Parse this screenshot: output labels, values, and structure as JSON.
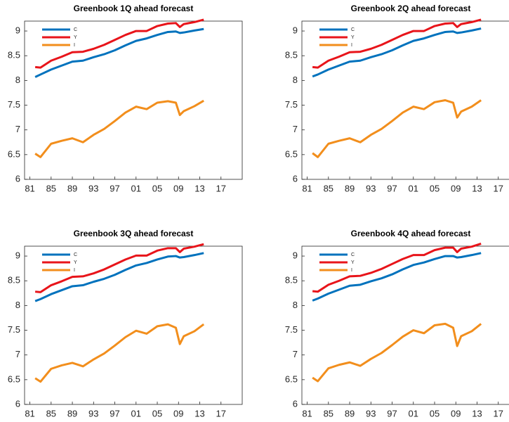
{
  "chart_data": [
    {
      "type": "line",
      "title": "Greenbook 1Q ahead forecast",
      "x": [
        1982,
        1983,
        1985,
        1987,
        1989,
        1991,
        1993,
        1995,
        1997,
        1999,
        2001,
        2003,
        2005,
        2007,
        2008.5,
        2009.25,
        2010,
        2012,
        2013.75
      ],
      "series": [
        {
          "name": "C",
          "color": "#0072bd",
          "values": [
            8.07,
            8.12,
            8.22,
            8.3,
            8.38,
            8.4,
            8.47,
            8.53,
            8.61,
            8.71,
            8.8,
            8.85,
            8.92,
            8.98,
            8.99,
            8.96,
            8.97,
            9.01,
            9.04
          ]
        },
        {
          "name": "Y",
          "color": "#e8141a",
          "values": [
            8.27,
            8.26,
            8.4,
            8.48,
            8.57,
            8.58,
            8.64,
            8.72,
            8.82,
            8.92,
            9.0,
            9.0,
            9.1,
            9.15,
            9.16,
            9.08,
            9.14,
            9.18,
            9.23
          ]
        },
        {
          "name": "I",
          "color": "#f28e1c",
          "values": [
            6.52,
            6.45,
            6.72,
            6.78,
            6.83,
            6.75,
            6.9,
            7.02,
            7.18,
            7.35,
            7.47,
            7.42,
            7.55,
            7.58,
            7.55,
            7.3,
            7.38,
            7.48,
            7.59
          ]
        }
      ],
      "xlim": [
        1980,
        2021
      ],
      "ylim": [
        6,
        9.2
      ],
      "xticks": [
        {
          "value": 1981,
          "label": "81"
        },
        {
          "value": 1985,
          "label": "85"
        },
        {
          "value": 1989,
          "label": "89"
        },
        {
          "value": 1993,
          "label": "93"
        },
        {
          "value": 1997,
          "label": "97"
        },
        {
          "value": 2001,
          "label": "01"
        },
        {
          "value": 2005,
          "label": "05"
        },
        {
          "value": 2009,
          "label": "09"
        },
        {
          "value": 2013,
          "label": "13"
        },
        {
          "value": 2017,
          "label": "17"
        }
      ],
      "yticks": [
        6,
        6.5,
        7,
        7.5,
        8,
        8.5,
        9
      ],
      "legend": "upper left",
      "grid": false
    },
    {
      "type": "line",
      "title": "Greenbook 2Q ahead forecast",
      "x": [
        1982,
        1983,
        1985,
        1987,
        1989,
        1991,
        1993,
        1995,
        1997,
        1999,
        2001,
        2003,
        2005,
        2007,
        2008.5,
        2009.25,
        2010,
        2012,
        2013.75
      ],
      "series": [
        {
          "name": "C",
          "color": "#0072bd",
          "values": [
            8.08,
            8.12,
            8.22,
            8.3,
            8.38,
            8.4,
            8.47,
            8.53,
            8.61,
            8.71,
            8.8,
            8.85,
            8.92,
            8.98,
            8.99,
            8.96,
            8.97,
            9.01,
            9.05
          ]
        },
        {
          "name": "Y",
          "color": "#e8141a",
          "values": [
            8.27,
            8.26,
            8.4,
            8.48,
            8.57,
            8.58,
            8.64,
            8.72,
            8.82,
            8.92,
            9.0,
            9.0,
            9.1,
            9.15,
            9.16,
            9.08,
            9.14,
            9.18,
            9.23
          ]
        },
        {
          "name": "I",
          "color": "#f28e1c",
          "values": [
            6.53,
            6.45,
            6.72,
            6.78,
            6.83,
            6.75,
            6.9,
            7.02,
            7.18,
            7.35,
            7.47,
            7.42,
            7.56,
            7.6,
            7.55,
            7.25,
            7.37,
            7.47,
            7.6
          ]
        }
      ],
      "xlim": [
        1980,
        2021
      ],
      "ylim": [
        6,
        9.2
      ],
      "xticks": [
        {
          "value": 1981,
          "label": "81"
        },
        {
          "value": 1985,
          "label": "85"
        },
        {
          "value": 1989,
          "label": "89"
        },
        {
          "value": 1993,
          "label": "93"
        },
        {
          "value": 1997,
          "label": "97"
        },
        {
          "value": 2001,
          "label": "01"
        },
        {
          "value": 2005,
          "label": "05"
        },
        {
          "value": 2009,
          "label": "09"
        },
        {
          "value": 2013,
          "label": "13"
        },
        {
          "value": 2017,
          "label": "17"
        }
      ],
      "yticks": [
        6,
        6.5,
        7,
        7.5,
        8,
        8.5,
        9
      ],
      "legend": "upper left",
      "grid": false
    },
    {
      "type": "line",
      "title": "Greenbook 3Q ahead forecast",
      "x": [
        1982,
        1983,
        1985,
        1987,
        1989,
        1991,
        1993,
        1995,
        1997,
        1999,
        2001,
        2003,
        2005,
        2007,
        2008.5,
        2009.25,
        2010,
        2012,
        2013.75
      ],
      "series": [
        {
          "name": "C",
          "color": "#0072bd",
          "values": [
            8.09,
            8.13,
            8.23,
            8.31,
            8.39,
            8.41,
            8.48,
            8.54,
            8.62,
            8.72,
            8.81,
            8.86,
            8.93,
            8.99,
            9.0,
            8.97,
            8.98,
            9.02,
            9.06
          ]
        },
        {
          "name": "Y",
          "color": "#e8141a",
          "values": [
            8.28,
            8.27,
            8.41,
            8.49,
            8.58,
            8.59,
            8.65,
            8.73,
            8.83,
            8.93,
            9.01,
            9.01,
            9.11,
            9.16,
            9.16,
            9.08,
            9.15,
            9.19,
            9.24
          ]
        },
        {
          "name": "I",
          "color": "#f28e1c",
          "values": [
            6.53,
            6.46,
            6.72,
            6.79,
            6.84,
            6.77,
            6.91,
            7.03,
            7.19,
            7.36,
            7.49,
            7.43,
            7.58,
            7.62,
            7.55,
            7.22,
            7.38,
            7.48,
            7.62
          ]
        }
      ],
      "xlim": [
        1980,
        2021
      ],
      "ylim": [
        6,
        9.2
      ],
      "xticks": [
        {
          "value": 1981,
          "label": "81"
        },
        {
          "value": 1985,
          "label": "85"
        },
        {
          "value": 1989,
          "label": "89"
        },
        {
          "value": 1993,
          "label": "93"
        },
        {
          "value": 1997,
          "label": "97"
        },
        {
          "value": 2001,
          "label": "01"
        },
        {
          "value": 2005,
          "label": "05"
        },
        {
          "value": 2009,
          "label": "09"
        },
        {
          "value": 2013,
          "label": "13"
        },
        {
          "value": 2017,
          "label": "17"
        }
      ],
      "yticks": [
        6,
        6.5,
        7,
        7.5,
        8,
        8.5,
        9
      ],
      "legend": "upper left",
      "grid": false
    },
    {
      "type": "line",
      "title": "Greenbook 4Q ahead forecast",
      "x": [
        1982,
        1983,
        1985,
        1987,
        1989,
        1991,
        1993,
        1995,
        1997,
        1999,
        2001,
        2003,
        2005,
        2007,
        2008.5,
        2009.25,
        2010,
        2012,
        2013.75
      ],
      "series": [
        {
          "name": "C",
          "color": "#0072bd",
          "values": [
            8.1,
            8.14,
            8.24,
            8.32,
            8.4,
            8.42,
            8.49,
            8.55,
            8.63,
            8.73,
            8.82,
            8.87,
            8.94,
            9.0,
            9.0,
            8.97,
            8.98,
            9.02,
            9.06
          ]
        },
        {
          "name": "Y",
          "color": "#e8141a",
          "values": [
            8.29,
            8.28,
            8.42,
            8.5,
            8.59,
            8.6,
            8.66,
            8.74,
            8.84,
            8.94,
            9.02,
            9.02,
            9.12,
            9.17,
            9.17,
            9.08,
            9.15,
            9.19,
            9.25
          ]
        },
        {
          "name": "I",
          "color": "#f28e1c",
          "values": [
            6.54,
            6.47,
            6.73,
            6.8,
            6.85,
            6.78,
            6.92,
            7.04,
            7.2,
            7.37,
            7.5,
            7.44,
            7.6,
            7.63,
            7.55,
            7.18,
            7.38,
            7.48,
            7.63
          ]
        }
      ],
      "xlim": [
        1980,
        2021
      ],
      "ylim": [
        6,
        9.2
      ],
      "xticks": [
        {
          "value": 1981,
          "label": "81"
        },
        {
          "value": 1985,
          "label": "85"
        },
        {
          "value": 1989,
          "label": "89"
        },
        {
          "value": 1993,
          "label": "93"
        },
        {
          "value": 1997,
          "label": "97"
        },
        {
          "value": 2001,
          "label": "01"
        },
        {
          "value": 2005,
          "label": "05"
        },
        {
          "value": 2009,
          "label": "09"
        },
        {
          "value": 2013,
          "label": "13"
        },
        {
          "value": 2017,
          "label": "17"
        }
      ],
      "yticks": [
        6,
        6.5,
        7,
        7.5,
        8,
        8.5,
        9
      ],
      "legend": "upper left",
      "grid": false
    }
  ]
}
